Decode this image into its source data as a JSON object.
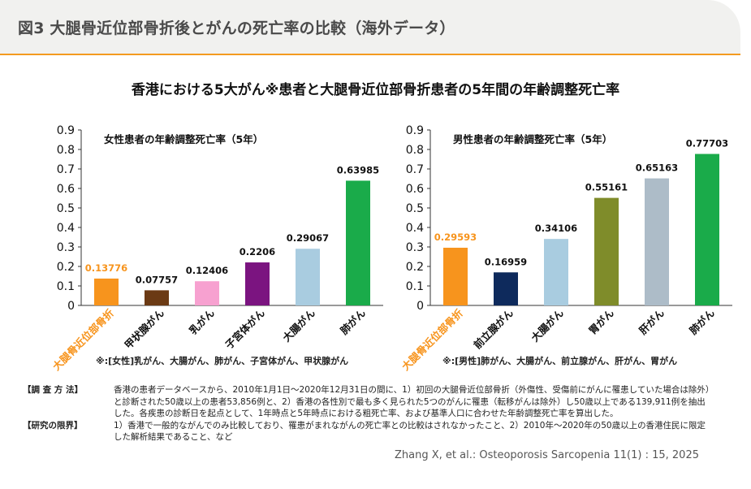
{
  "figure_title": "図3 大腿骨近位部骨折後とがんの死亡率の比較（海外データ）",
  "main_title": "香港における5大がん※患者と大腿骨近位部骨折患者の5年間の年齢調整死亡率",
  "colors": {
    "accent": "#f39a1f",
    "header_bg": "#f1f1ef"
  },
  "notes": {
    "female": "※:[女性]乳がん、大腸がん、肺がん、子宮体がん、甲状腺がん",
    "male": "※:[男性]肺がん、大腸がん、前立腺がん、肝がん、胃がん"
  },
  "methods": {
    "label": "【調 査 方 法】",
    "text": "香港の患者データベースから、2010年1月1日～2020年12月31日の間に、1）初回の大腿骨近位部骨折（外傷性、受傷前にがんに罹患していた場合は除外）と診断された50歳以上の患者53,856例と、2）香港の各性別で最も多く見られた5つのがんに罹患（転移がんは除外）し50歳以上である139,911例を抽出した。各疾患の診断日を起点として、1年時点と5年時点における粗死亡率、および基準人口に合わせた年齢調整死亡率を算出した。",
    "limit_label": "【研究の限界】",
    "limit_text": "1）香港で一般的ながんでのみ比較しており、罹患がまれながんの死亡率との比較はされなかったこと、2）2010年～2020年の50歳以上の香港住民に限定した解析結果であること、など"
  },
  "citation": "Zhang X, et al.: Osteoporosis Sarcopenia 11(1) : 15, 2025",
  "chart_data": [
    {
      "type": "bar",
      "title": "女性患者の年齢調整死亡率（5年）",
      "categories": [
        "大腿骨近位部骨折",
        "甲状腺がん",
        "乳がん",
        "子宮体がん",
        "大腸がん",
        "肺がん"
      ],
      "values": [
        0.13776,
        0.07757,
        0.12406,
        0.2206,
        0.29067,
        0.63985
      ],
      "value_labels": [
        "0.13776",
        "0.07757",
        "0.12406",
        "0.2206",
        "0.29067",
        "0.63985"
      ],
      "colors": [
        "#f7941d",
        "#6b3a14",
        "#f7a1d0",
        "#7b1480",
        "#a9cce0",
        "#1aab4a"
      ],
      "highlight_index": 0,
      "highlight_color": "#f7941d",
      "ylim": [
        0,
        0.9
      ],
      "yticks": [
        "0",
        "0.1",
        "0.2",
        "0.3",
        "0.4",
        "0.5",
        "0.6",
        "0.7",
        "0.8",
        "0.9"
      ],
      "grid": false
    },
    {
      "type": "bar",
      "title": "男性患者の年齢調整死亡率（5年）",
      "categories": [
        "大腿骨近位部骨折",
        "前立腺がん",
        "大腸がん",
        "胃がん",
        "肝がん",
        "肺がん"
      ],
      "values": [
        0.29593,
        0.16959,
        0.34106,
        0.55161,
        0.65163,
        0.77703
      ],
      "value_labels": [
        "0.29593",
        "0.16959",
        "0.34106",
        "0.55161",
        "0.65163",
        "0.77703"
      ],
      "colors": [
        "#f7941d",
        "#0e2a5c",
        "#a9cce0",
        "#7f8c2a",
        "#adbcc8",
        "#1aab4a"
      ],
      "highlight_index": 0,
      "highlight_color": "#f7941d",
      "ylim": [
        0,
        0.9
      ],
      "yticks": [
        "0",
        "0.1",
        "0.2",
        "0.3",
        "0.4",
        "0.5",
        "0.6",
        "0.7",
        "0.8",
        "0.9"
      ],
      "grid": false
    }
  ]
}
